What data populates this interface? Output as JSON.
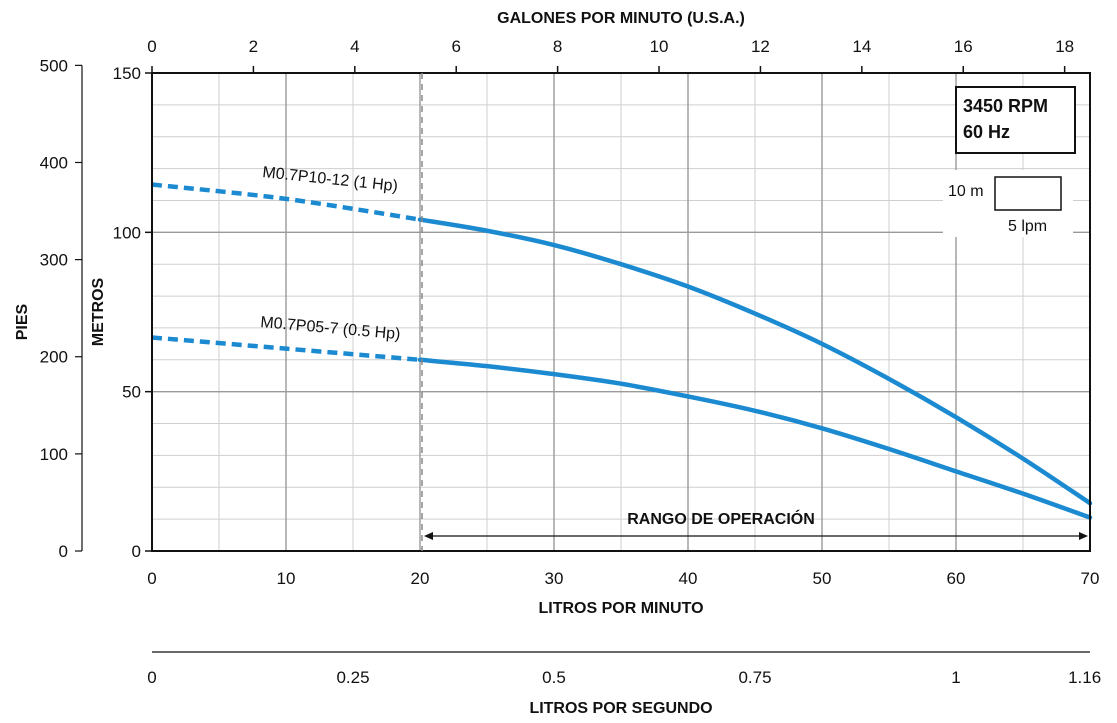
{
  "chart_data": {
    "type": "line",
    "x_primary": {
      "label": "LITROS POR MINUTO",
      "range": [
        0,
        70
      ],
      "ticks": [
        0,
        10,
        20,
        30,
        40,
        50,
        60,
        70
      ]
    },
    "x_top": {
      "label": "GALONES POR MINUTO (U.S.A.)",
      "range": [
        0,
        18.5
      ],
      "ticks": [
        0,
        2,
        4,
        6,
        8,
        10,
        12,
        14,
        16,
        18
      ]
    },
    "x_bottom": {
      "label": "LITROS POR SEGUNDO",
      "tick_labels": [
        "0",
        "0.25",
        "0.5",
        "0.75",
        "1",
        "1.16"
      ],
      "tick_values": [
        0,
        0.25,
        0.5,
        0.75,
        1,
        1.16
      ]
    },
    "y_primary": {
      "label": "METROS",
      "range": [
        0,
        150
      ],
      "ticks": [
        0,
        50,
        100,
        150
      ]
    },
    "y_secondary": {
      "label": "PIES",
      "range": [
        0,
        500
      ],
      "ticks": [
        0,
        100,
        200,
        300,
        400,
        500
      ]
    },
    "grid": true,
    "series": [
      {
        "name": "M0.7P10-12 (1 Hp)",
        "color": "#1b8ad1",
        "dashed_until_x": 20,
        "x": [
          0,
          10,
          20,
          25,
          30,
          35,
          40,
          45,
          50,
          55,
          60,
          65,
          70
        ],
        "y": [
          115,
          110.5,
          104,
          100.5,
          96,
          90,
          83,
          74.5,
          65,
          54,
          42,
          29,
          15
        ]
      },
      {
        "name": "M0.7P05-7 (0.5 Hp)",
        "color": "#1b8ad1",
        "dashed_until_x": 20,
        "x": [
          0,
          10,
          20,
          25,
          30,
          35,
          40,
          45,
          50,
          55,
          60,
          65,
          70
        ],
        "y": [
          67,
          63.5,
          60,
          58,
          55.5,
          52.5,
          48.5,
          44,
          38.5,
          32,
          25,
          18,
          10.5
        ]
      }
    ],
    "operating_range": {
      "label": "RANGO DE OPERACIÓN",
      "x_start": 20,
      "x_end": 70
    },
    "info_box": {
      "line1": "3450 RPM",
      "line2": "60 Hz"
    },
    "scale_key": {
      "height_label": "10 m",
      "width_label": "5 lpm",
      "height_value": 10,
      "width_value": 5
    }
  }
}
